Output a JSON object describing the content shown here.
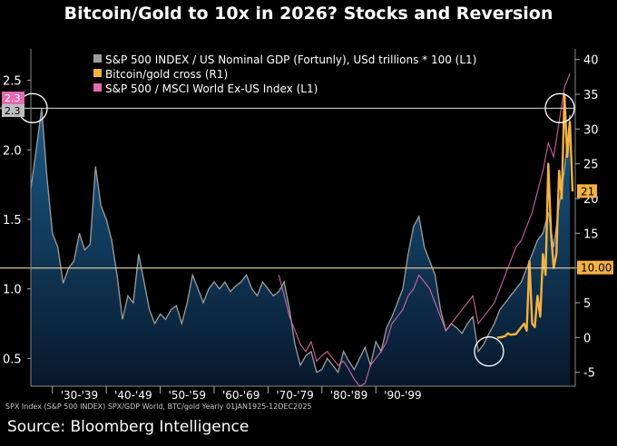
{
  "header": {
    "title": "Bitcoin/Gold to 10x in 2026? Stocks and Reversion"
  },
  "footer": {
    "footnote": "SPX Index (S&P 500 INDEX) SPX/GDP World, BTC/gold Yearly 01JAN1925-12DEC2025",
    "source": "Source: Bloomberg Intelligence"
  },
  "colors": {
    "background": "#000000",
    "spx_gdp": "#9e9e9e",
    "btc_gold": "#f5b240",
    "spx_world": "#e46ab0",
    "area_top": "#1a5a86",
    "area_bottom": "#08182c",
    "guide_line": "#d8d8d8",
    "level_line": "#f0d7a0"
  },
  "chart_data": {
    "type": "line",
    "title": "Bitcoin/Gold to 10x in 2026? Stocks and Reversion",
    "x_range": [
      1925,
      2026
    ],
    "y_left": {
      "range": [
        0.3,
        2.7
      ],
      "ticks": [
        0.5,
        1.0,
        1.5,
        2.0,
        2.5
      ],
      "tick_labels": [
        "0.5",
        "1.0",
        "1.5",
        "2.0",
        "2.5"
      ]
    },
    "y_right": {
      "range": [
        -7,
        41
      ],
      "ticks": [
        -5,
        0,
        5,
        10,
        15,
        20,
        25,
        30,
        35,
        40
      ],
      "tick_labels": [
        "-5",
        "0",
        "5",
        "10",
        "15",
        "20",
        "25",
        "30",
        "35",
        "40"
      ]
    },
    "x_ticks": [
      {
        "x": 1934,
        "label": "'30-'39"
      },
      {
        "x": 1944,
        "label": "'40-'49"
      },
      {
        "x": 1954,
        "label": "'50-'59"
      },
      {
        "x": 1964,
        "label": "'60-'69"
      },
      {
        "x": 1974,
        "label": "'70-'79"
      },
      {
        "x": 1984,
        "label": "'80-'89"
      },
      {
        "x": 1994,
        "label": "'90-'99"
      }
    ],
    "legend_position": "top-left",
    "grid": false,
    "series": [
      {
        "name": "S&P 500 INDEX / US Nominal GDP (Fortunly), USd trillions * 100 (L1)",
        "axis": "left",
        "style": "area",
        "x": [
          1925,
          1926,
          1927,
          1928,
          1929,
          1930,
          1931,
          1932,
          1933,
          1934,
          1935,
          1936,
          1937,
          1938,
          1939,
          1940,
          1941,
          1942,
          1943,
          1944,
          1945,
          1946,
          1947,
          1948,
          1949,
          1950,
          1951,
          1952,
          1953,
          1954,
          1955,
          1956,
          1957,
          1958,
          1959,
          1960,
          1961,
          1962,
          1963,
          1964,
          1965,
          1966,
          1967,
          1968,
          1969,
          1970,
          1971,
          1972,
          1973,
          1974,
          1975,
          1976,
          1977,
          1978,
          1979,
          1980,
          1981,
          1982,
          1983,
          1984,
          1985,
          1986,
          1987,
          1988,
          1989,
          1990,
          1991,
          1992,
          1993,
          1994,
          1995,
          1996,
          1997,
          1998,
          1999,
          2000,
          2001,
          2002,
          2003,
          2004,
          2005,
          2006,
          2007,
          2008,
          2009,
          2010,
          2011,
          2012,
          2013,
          2014,
          2015,
          2016,
          2017,
          2018,
          2019,
          2020,
          2021,
          2022,
          2023,
          2024,
          2025
        ],
        "values": [
          1.72,
          2.0,
          2.3,
          1.8,
          1.4,
          1.3,
          1.04,
          1.15,
          1.2,
          1.4,
          1.28,
          1.32,
          1.88,
          1.6,
          1.5,
          1.35,
          1.1,
          0.78,
          0.95,
          0.9,
          1.25,
          1.05,
          0.85,
          0.75,
          0.82,
          0.78,
          0.85,
          0.88,
          0.75,
          0.9,
          1.1,
          1.0,
          0.9,
          1.0,
          1.05,
          1.0,
          1.05,
          0.98,
          1.02,
          1.05,
          1.1,
          1.0,
          0.95,
          1.05,
          1.0,
          0.95,
          0.98,
          1.05,
          0.85,
          0.6,
          0.45,
          0.52,
          0.55,
          0.4,
          0.42,
          0.5,
          0.45,
          0.4,
          0.55,
          0.48,
          0.42,
          0.5,
          0.58,
          0.45,
          0.62,
          0.55,
          0.72,
          0.8,
          0.9,
          1.0,
          1.25,
          1.45,
          1.52,
          1.3,
          1.2,
          1.1,
          0.85,
          0.7,
          0.75,
          0.72,
          0.68,
          0.75,
          0.8,
          0.55,
          0.6,
          0.68,
          0.75,
          0.85,
          0.9,
          0.95,
          1.0,
          1.05,
          1.15,
          1.25,
          1.35,
          1.4,
          1.55,
          1.3,
          1.6,
          1.85,
          2.25
        ]
      },
      {
        "name": "Bitcoin/gold cross (R1)",
        "axis": "right",
        "style": "line",
        "x": [
          2011.5,
          2012,
          2013,
          2013.5,
          2014,
          2015,
          2016,
          2016.5,
          2017,
          2017.5,
          2018,
          2018.5,
          2019,
          2019.5,
          2020,
          2020.5,
          2021,
          2021.5,
          2022,
          2022.5,
          2023,
          2023.5,
          2024,
          2024.5,
          2025,
          2025.5
        ],
        "values": [
          0,
          0,
          0.2,
          0.6,
          0.4,
          0.5,
          1.5,
          2,
          1,
          11,
          2,
          1.5,
          6,
          3,
          12,
          9,
          25,
          15,
          10,
          12,
          24,
          20,
          35,
          26,
          31,
          21
        ]
      },
      {
        "name": "S&P 500 / MSCI World Ex-US Index (L1)",
        "axis": "left",
        "style": "line",
        "x": [
          1971,
          1972,
          1973,
          1974,
          1975,
          1976,
          1977,
          1978,
          1979,
          1980,
          1981,
          1982,
          1983,
          1984,
          1985,
          1986,
          1987,
          1988,
          1989,
          1990,
          1991,
          1992,
          1993,
          1994,
          1995,
          1996,
          1997,
          1998,
          1999,
          2000,
          2001,
          2002,
          2003,
          2004,
          2005,
          2006,
          2007,
          2008,
          2009,
          2010,
          2011,
          2012,
          2013,
          2014,
          2015,
          2016,
          2017,
          2018,
          2019,
          2020,
          2021,
          2022,
          2023,
          2024,
          2025
        ],
        "values": [
          1.1,
          0.95,
          0.8,
          0.7,
          0.6,
          0.55,
          0.62,
          0.48,
          0.52,
          0.55,
          0.5,
          0.45,
          0.48,
          0.42,
          0.35,
          0.3,
          0.32,
          0.45,
          0.5,
          0.55,
          0.62,
          0.75,
          0.8,
          0.85,
          0.95,
          1.0,
          1.1,
          1.05,
          1.0,
          0.9,
          0.8,
          0.7,
          0.75,
          0.8,
          0.85,
          0.9,
          0.95,
          0.75,
          0.8,
          0.85,
          0.9,
          1.0,
          1.1,
          1.2,
          1.3,
          1.35,
          1.45,
          1.55,
          1.7,
          1.85,
          2.05,
          1.95,
          2.2,
          2.45,
          2.55
        ]
      }
    ],
    "reference_lines": [
      {
        "axis": "left",
        "value": 2.3
      },
      {
        "axis": "right",
        "value": 10
      }
    ],
    "value_labels": {
      "left_top": "2.3",
      "left_bottom": "2.3",
      "right_upper": "21",
      "right_lower": "10.00"
    }
  }
}
